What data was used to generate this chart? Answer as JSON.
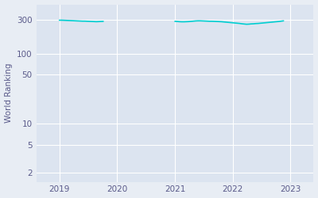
{
  "ylabel": "World Ranking",
  "line_color": "#00CED1",
  "bg_color": "#e8edf4",
  "axes_bg_color": "#dce4f0",
  "grid_color": "#ffffff",
  "tick_label_color": "#5a5a8a",
  "segments": [
    {
      "dates_num": [
        2019.0,
        2019.04,
        2019.08,
        2019.12,
        2019.16,
        2019.2,
        2019.24,
        2019.28,
        2019.32,
        2019.36,
        2019.4,
        2019.44,
        2019.48,
        2019.52,
        2019.56,
        2019.6,
        2019.64,
        2019.68,
        2019.72,
        2019.76
      ],
      "values": [
        298,
        298,
        297,
        296,
        295,
        294,
        293,
        292,
        291,
        290,
        289,
        289,
        288,
        287,
        286,
        285,
        284,
        285,
        286,
        287
      ]
    },
    {
      "dates_num": [
        2021.0,
        2021.04,
        2021.08,
        2021.12,
        2021.16,
        2021.2,
        2021.24,
        2021.28,
        2021.32,
        2021.36,
        2021.4,
        2021.44,
        2021.48,
        2021.52,
        2021.56,
        2021.6,
        2021.64,
        2021.68,
        2021.72,
        2021.76,
        2021.8,
        2021.84,
        2021.88,
        2021.92,
        2021.96,
        2022.0,
        2022.04,
        2022.08,
        2022.12,
        2022.16,
        2022.2,
        2022.24,
        2022.28,
        2022.32,
        2022.36,
        2022.4,
        2022.44,
        2022.48,
        2022.52,
        2022.56,
        2022.6,
        2022.64,
        2022.68,
        2022.72,
        2022.76,
        2022.8,
        2022.84,
        2022.88
      ],
      "values": [
        287,
        286,
        284,
        283,
        283,
        284,
        285,
        287,
        289,
        291,
        292,
        292,
        291,
        290,
        289,
        288,
        288,
        287,
        286,
        285,
        284,
        282,
        280,
        278,
        276,
        274,
        272,
        270,
        268,
        265,
        263,
        261,
        262,
        264,
        265,
        267,
        268,
        270,
        272,
        274,
        276,
        278,
        280,
        282,
        284,
        286,
        289,
        292
      ]
    }
  ],
  "xlim": [
    2018.6,
    2023.4
  ],
  "ylim_log": [
    1.5,
    500
  ],
  "yticks": [
    2,
    5,
    10,
    50,
    100,
    300
  ],
  "xticks": [
    2019,
    2020,
    2021,
    2022,
    2023
  ],
  "linewidth": 1.2
}
